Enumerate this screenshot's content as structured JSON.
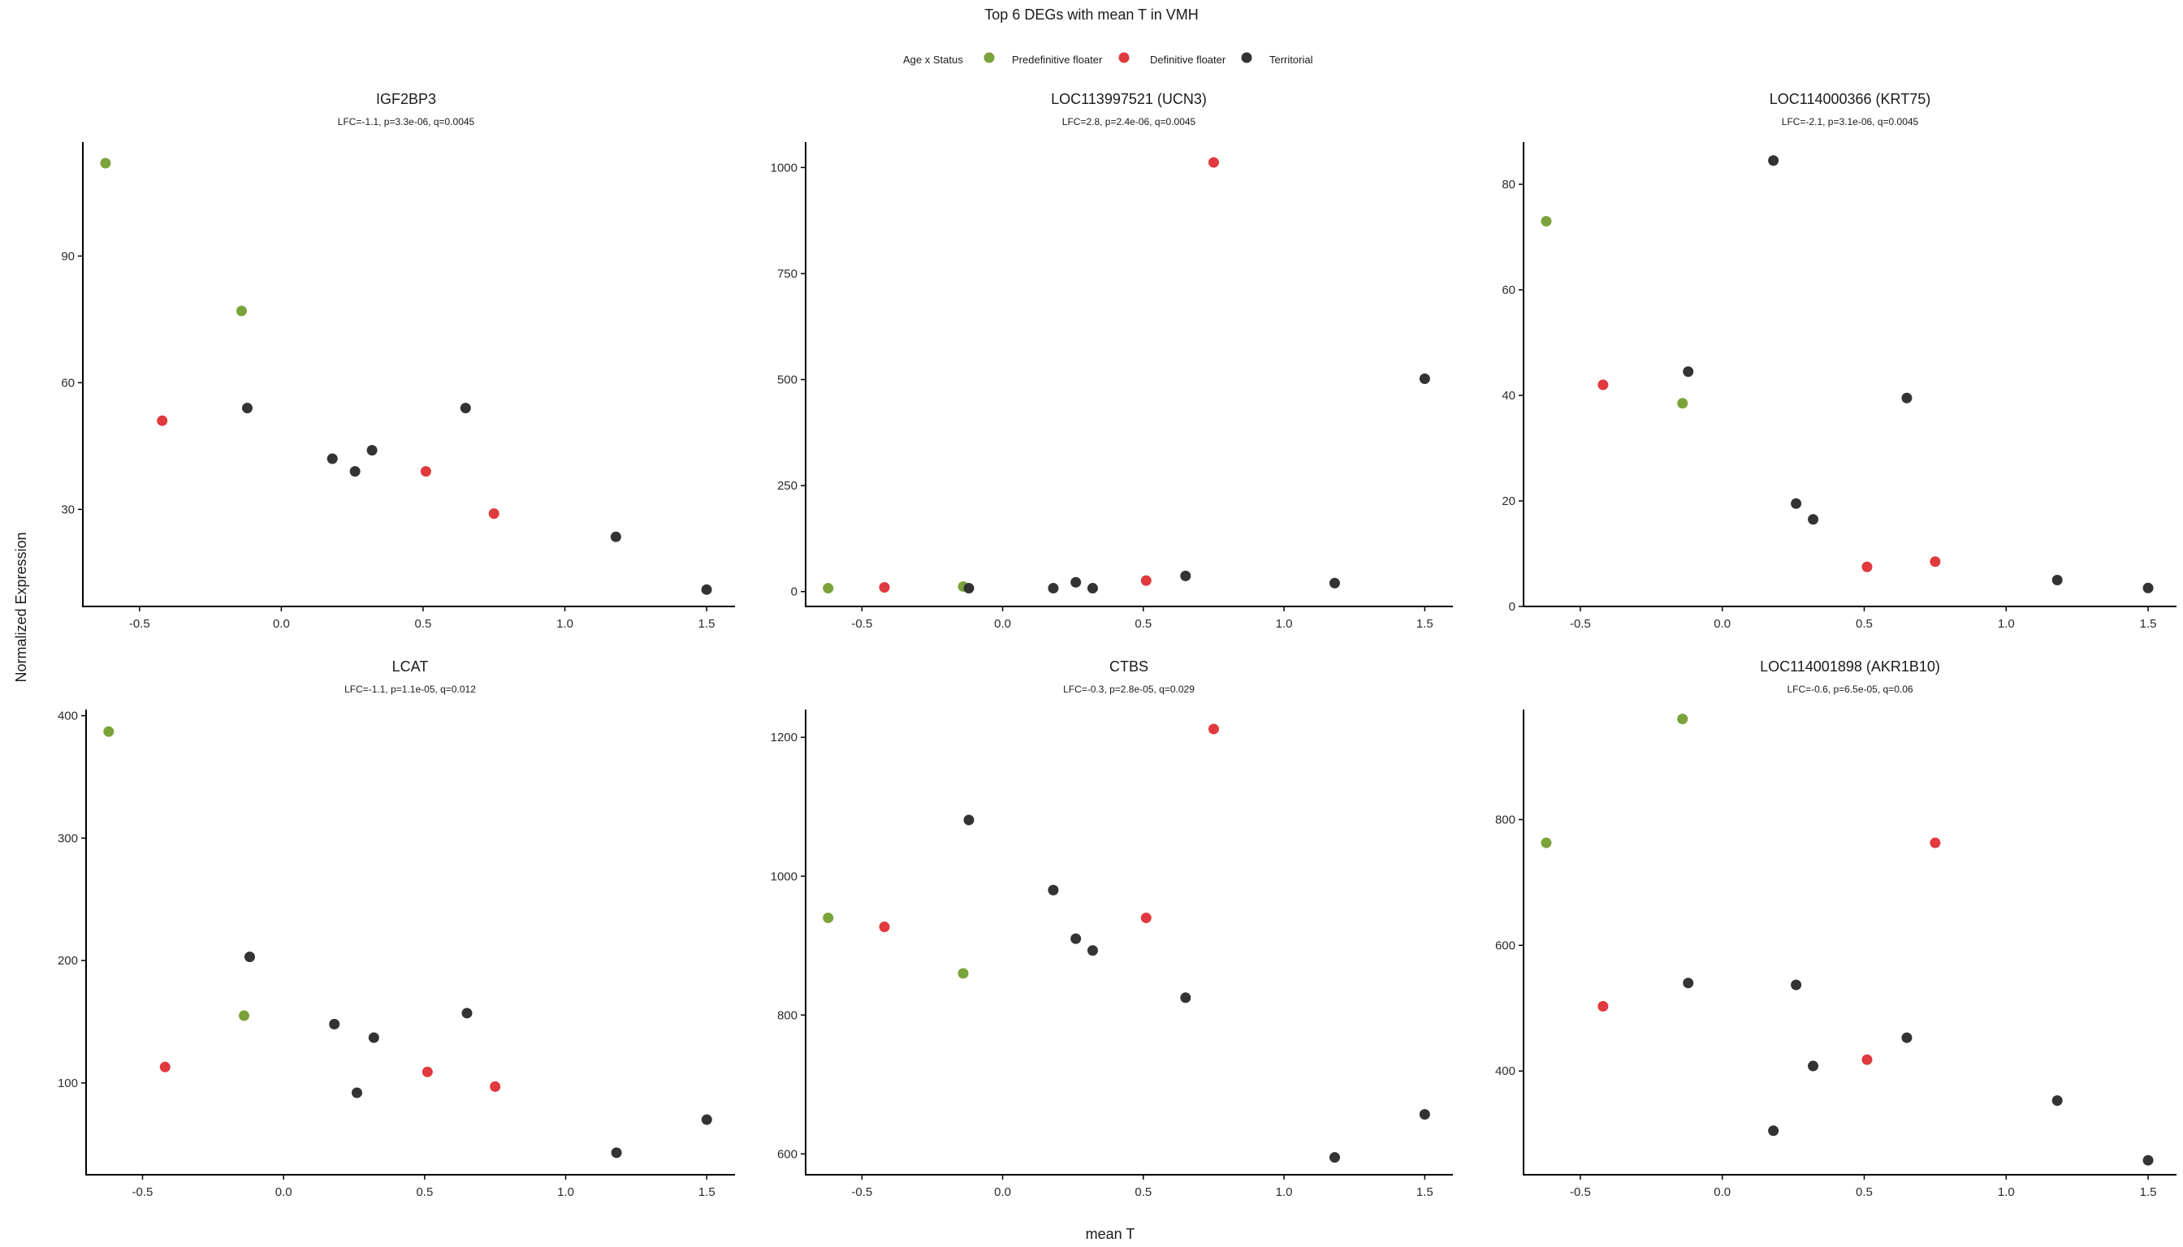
{
  "figure_title": "Top 6 DEGs with mean T in VMH",
  "legend": {
    "title": "Age x Status",
    "items": [
      {
        "label": "Predefinitive floater",
        "color": "#7aa33a"
      },
      {
        "label": "Definitive floater",
        "color": "#e0393e"
      },
      {
        "label": "Territorial",
        "color": "#333333"
      }
    ]
  },
  "x_axis_label": "mean T",
  "y_axis_label": "Normalized Expression",
  "chart_data": [
    {
      "type": "scatter",
      "title": "IGF2BP3",
      "subtitle": "LFC=-1.1, p=3.3e-06, q=0.0045",
      "xlim": [
        -0.7,
        1.6
      ],
      "ylim": [
        7,
        117
      ],
      "xticks": [
        -0.5,
        0.0,
        0.5,
        1.0,
        1.5
      ],
      "xtick_labels": [
        "-0.5",
        "0.0",
        "0.5",
        "1.0",
        "1.5"
      ],
      "yticks": [
        30,
        60,
        90
      ],
      "ytick_labels": [
        "30",
        "60",
        "90"
      ],
      "points": [
        {
          "x": -0.62,
          "y": 112,
          "group": "Predefinitive floater"
        },
        {
          "x": -0.14,
          "y": 77,
          "group": "Predefinitive floater"
        },
        {
          "x": -0.42,
          "y": 51,
          "group": "Definitive floater"
        },
        {
          "x": -0.12,
          "y": 54,
          "group": "Territorial"
        },
        {
          "x": 0.18,
          "y": 42,
          "group": "Territorial"
        },
        {
          "x": 0.26,
          "y": 39,
          "group": "Territorial"
        },
        {
          "x": 0.32,
          "y": 44,
          "group": "Territorial"
        },
        {
          "x": 0.51,
          "y": 39,
          "group": "Definitive floater"
        },
        {
          "x": 0.65,
          "y": 54,
          "group": "Territorial"
        },
        {
          "x": 0.75,
          "y": 29,
          "group": "Definitive floater"
        },
        {
          "x": 1.18,
          "y": 23.5,
          "group": "Territorial"
        },
        {
          "x": 1.5,
          "y": 11,
          "group": "Territorial"
        }
      ]
    },
    {
      "type": "scatter",
      "title": "LOC113997521 (UCN3)",
      "subtitle": "LFC=2.8, p=2.4e-06, q=0.0045",
      "xlim": [
        -0.7,
        1.6
      ],
      "ylim": [
        -35,
        1060
      ],
      "xticks": [
        -0.5,
        0.0,
        0.5,
        1.0,
        1.5
      ],
      "xtick_labels": [
        "-0.5",
        "0.0",
        "0.5",
        "1.0",
        "1.5"
      ],
      "yticks": [
        0,
        250,
        500,
        750,
        1000
      ],
      "ytick_labels": [
        "0",
        "250",
        "500",
        "750",
        "1000"
      ],
      "points": [
        {
          "x": -0.62,
          "y": 8,
          "group": "Predefinitive floater"
        },
        {
          "x": -0.14,
          "y": 12,
          "group": "Predefinitive floater"
        },
        {
          "x": -0.42,
          "y": 10,
          "group": "Definitive floater"
        },
        {
          "x": -0.12,
          "y": 8,
          "group": "Territorial"
        },
        {
          "x": 0.18,
          "y": 8,
          "group": "Territorial"
        },
        {
          "x": 0.26,
          "y": 22,
          "group": "Territorial"
        },
        {
          "x": 0.32,
          "y": 8,
          "group": "Territorial"
        },
        {
          "x": 0.51,
          "y": 26,
          "group": "Definitive floater"
        },
        {
          "x": 0.65,
          "y": 37,
          "group": "Territorial"
        },
        {
          "x": 0.75,
          "y": 1012,
          "group": "Definitive floater"
        },
        {
          "x": 1.18,
          "y": 20,
          "group": "Territorial"
        },
        {
          "x": 1.5,
          "y": 502,
          "group": "Territorial"
        }
      ]
    },
    {
      "type": "scatter",
      "title": "LOC114000366 (KRT75)",
      "subtitle": "LFC=-2.1, p=3.1e-06, q=0.0045",
      "xlim": [
        -0.7,
        1.6
      ],
      "ylim": [
        0,
        88
      ],
      "xticks": [
        -0.5,
        0.0,
        0.5,
        1.0,
        1.5
      ],
      "xtick_labels": [
        "-0.5",
        "0.0",
        "0.5",
        "1.0",
        "1.5"
      ],
      "yticks": [
        0,
        20,
        40,
        60,
        80
      ],
      "ytick_labels": [
        "0",
        "20",
        "40",
        "60",
        "80"
      ],
      "points": [
        {
          "x": -0.62,
          "y": 73,
          "group": "Predefinitive floater"
        },
        {
          "x": -0.14,
          "y": 38.5,
          "group": "Predefinitive floater"
        },
        {
          "x": -0.42,
          "y": 42,
          "group": "Definitive floater"
        },
        {
          "x": -0.12,
          "y": 44.5,
          "group": "Territorial"
        },
        {
          "x": 0.18,
          "y": 84.5,
          "group": "Territorial"
        },
        {
          "x": 0.26,
          "y": 19.5,
          "group": "Territorial"
        },
        {
          "x": 0.32,
          "y": 16.5,
          "group": "Territorial"
        },
        {
          "x": 0.51,
          "y": 7.5,
          "group": "Definitive floater"
        },
        {
          "x": 0.65,
          "y": 39.5,
          "group": "Territorial"
        },
        {
          "x": 0.75,
          "y": 8.5,
          "group": "Definitive floater"
        },
        {
          "x": 1.18,
          "y": 5,
          "group": "Territorial"
        },
        {
          "x": 1.5,
          "y": 3.5,
          "group": "Territorial"
        }
      ]
    },
    {
      "type": "scatter",
      "title": "LCAT",
      "subtitle": "LFC=-1.1, p=1.1e-05, q=0.012",
      "xlim": [
        -0.7,
        1.6
      ],
      "ylim": [
        25,
        405
      ],
      "xticks": [
        -0.5,
        0.0,
        0.5,
        1.0,
        1.5
      ],
      "xtick_labels": [
        "-0.5",
        "0.0",
        "0.5",
        "1.0",
        "1.5"
      ],
      "yticks": [
        100,
        200,
        300,
        400
      ],
      "ytick_labels": [
        "100",
        "200",
        "300",
        "400"
      ],
      "points": [
        {
          "x": -0.62,
          "y": 387,
          "group": "Predefinitive floater"
        },
        {
          "x": -0.14,
          "y": 155,
          "group": "Predefinitive floater"
        },
        {
          "x": -0.42,
          "y": 113,
          "group": "Definitive floater"
        },
        {
          "x": -0.12,
          "y": 203,
          "group": "Territorial"
        },
        {
          "x": 0.18,
          "y": 148,
          "group": "Territorial"
        },
        {
          "x": 0.26,
          "y": 92,
          "group": "Territorial"
        },
        {
          "x": 0.32,
          "y": 137,
          "group": "Territorial"
        },
        {
          "x": 0.51,
          "y": 109,
          "group": "Definitive floater"
        },
        {
          "x": 0.65,
          "y": 157,
          "group": "Territorial"
        },
        {
          "x": 0.75,
          "y": 97,
          "group": "Definitive floater"
        },
        {
          "x": 1.18,
          "y": 43,
          "group": "Territorial"
        },
        {
          "x": 1.5,
          "y": 70,
          "group": "Territorial"
        }
      ]
    },
    {
      "type": "scatter",
      "title": "CTBS",
      "subtitle": "LFC=-0.3, p=2.8e-05, q=0.029",
      "xlim": [
        -0.7,
        1.6
      ],
      "ylim": [
        570,
        1240
      ],
      "xticks": [
        -0.5,
        0.0,
        0.5,
        1.0,
        1.5
      ],
      "xtick_labels": [
        "-0.5",
        "0.0",
        "0.5",
        "1.0",
        "1.5"
      ],
      "yticks": [
        600,
        800,
        1000,
        1200
      ],
      "ytick_labels": [
        "600",
        "800",
        "1000",
        "1200"
      ],
      "points": [
        {
          "x": -0.62,
          "y": 940,
          "group": "Predefinitive floater"
        },
        {
          "x": -0.14,
          "y": 860,
          "group": "Predefinitive floater"
        },
        {
          "x": -0.42,
          "y": 927,
          "group": "Definitive floater"
        },
        {
          "x": -0.12,
          "y": 1081,
          "group": "Territorial"
        },
        {
          "x": 0.18,
          "y": 980,
          "group": "Territorial"
        },
        {
          "x": 0.26,
          "y": 910,
          "group": "Territorial"
        },
        {
          "x": 0.32,
          "y": 893,
          "group": "Territorial"
        },
        {
          "x": 0.51,
          "y": 940,
          "group": "Definitive floater"
        },
        {
          "x": 0.65,
          "y": 825,
          "group": "Territorial"
        },
        {
          "x": 0.75,
          "y": 1212,
          "group": "Definitive floater"
        },
        {
          "x": 1.18,
          "y": 595,
          "group": "Territorial"
        },
        {
          "x": 1.5,
          "y": 657,
          "group": "Territorial"
        }
      ]
    },
    {
      "type": "scatter",
      "title": "LOC114001898 (AKR1B10)",
      "subtitle": "LFC=-0.6, p=6.5e-05, q=0.06",
      "xlim": [
        -0.7,
        1.6
      ],
      "ylim": [
        235,
        975
      ],
      "xticks": [
        -0.5,
        0.0,
        0.5,
        1.0,
        1.5
      ],
      "xtick_labels": [
        "-0.5",
        "0.0",
        "0.5",
        "1.0",
        "1.5"
      ],
      "yticks": [
        400,
        600,
        800
      ],
      "ytick_labels": [
        "400",
        "600",
        "800"
      ],
      "points": [
        {
          "x": -0.62,
          "y": 763,
          "group": "Predefinitive floater"
        },
        {
          "x": -0.14,
          "y": 960,
          "group": "Predefinitive floater"
        },
        {
          "x": -0.42,
          "y": 503,
          "group": "Definitive floater"
        },
        {
          "x": -0.12,
          "y": 540,
          "group": "Territorial"
        },
        {
          "x": 0.18,
          "y": 305,
          "group": "Territorial"
        },
        {
          "x": 0.26,
          "y": 537,
          "group": "Territorial"
        },
        {
          "x": 0.32,
          "y": 408,
          "group": "Territorial"
        },
        {
          "x": 0.51,
          "y": 418,
          "group": "Definitive floater"
        },
        {
          "x": 0.65,
          "y": 453,
          "group": "Territorial"
        },
        {
          "x": 0.75,
          "y": 763,
          "group": "Definitive floater"
        },
        {
          "x": 1.18,
          "y": 353,
          "group": "Territorial"
        },
        {
          "x": 1.5,
          "y": 258,
          "group": "Territorial"
        }
      ]
    }
  ]
}
